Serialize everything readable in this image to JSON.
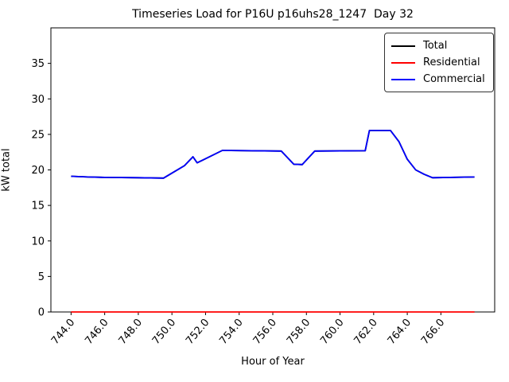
{
  "window": {
    "background": "#ffffff"
  },
  "title": "Timeseries Load for P16U p16uhs28_1247  Day 32",
  "xlabel": "Hour of Year",
  "ylabel": "kW total",
  "chart_data": {
    "type": "line",
    "title": "Timeseries Load for P16U p16uhs28_1247  Day 32",
    "xlabel": "Hour of Year",
    "ylabel": "kW total",
    "xlim": [
      742.8,
      769.2
    ],
    "ylim": [
      0,
      40
    ],
    "grid": false,
    "legend_position": "upper right",
    "xticks": {
      "values": [
        744,
        746,
        748,
        750,
        752,
        754,
        756,
        758,
        760,
        762,
        764,
        766
      ],
      "labels": [
        "744.0",
        "746.0",
        "748.0",
        "750.0",
        "752.0",
        "754.0",
        "756.0",
        "758.0",
        "760.0",
        "762.0",
        "764.0",
        "766.0"
      ],
      "rotation_deg": 50
    },
    "yticks": {
      "values": [
        0,
        5,
        10,
        15,
        20,
        25,
        30,
        35
      ],
      "labels": [
        "0",
        "5",
        "10",
        "15",
        "20",
        "25",
        "30",
        "35"
      ]
    },
    "legend": [
      {
        "label": "Total",
        "color": "#000000"
      },
      {
        "label": "Residential",
        "color": "#ff0000"
      },
      {
        "label": "Commercial",
        "color": "#0000ff"
      }
    ],
    "series": [
      {
        "name": "Total",
        "color": "#000000",
        "x": [
          744,
          745,
          746,
          748,
          749.5,
          750.75,
          751.25,
          751.5,
          753,
          756.5,
          757.25,
          757.75,
          758.5,
          761.5,
          761.75,
          763,
          763.5,
          764,
          764.5,
          765,
          765.5,
          768
        ],
        "y": [
          19.1,
          19.0,
          18.95,
          18.9,
          18.85,
          20.6,
          21.85,
          21.0,
          22.75,
          22.65,
          20.8,
          20.75,
          22.65,
          22.7,
          25.55,
          25.55,
          24.0,
          21.5,
          20.0,
          19.4,
          18.9,
          19.0
        ]
      },
      {
        "name": "Residential",
        "color": "#ff0000",
        "x": [
          744,
          768
        ],
        "y": [
          0,
          0
        ]
      },
      {
        "name": "Commercial",
        "color": "#0000ff",
        "x": [
          744,
          745,
          746,
          748,
          749.5,
          750.75,
          751.25,
          751.5,
          753,
          756.5,
          757.25,
          757.75,
          758.5,
          761.5,
          761.75,
          763,
          763.5,
          764,
          764.5,
          765,
          765.5,
          768
        ],
        "y": [
          19.1,
          19.0,
          18.95,
          18.9,
          18.85,
          20.6,
          21.85,
          21.0,
          22.75,
          22.65,
          20.8,
          20.75,
          22.65,
          22.7,
          25.55,
          25.55,
          24.0,
          21.5,
          20.0,
          19.4,
          18.9,
          19.0
        ]
      }
    ]
  }
}
